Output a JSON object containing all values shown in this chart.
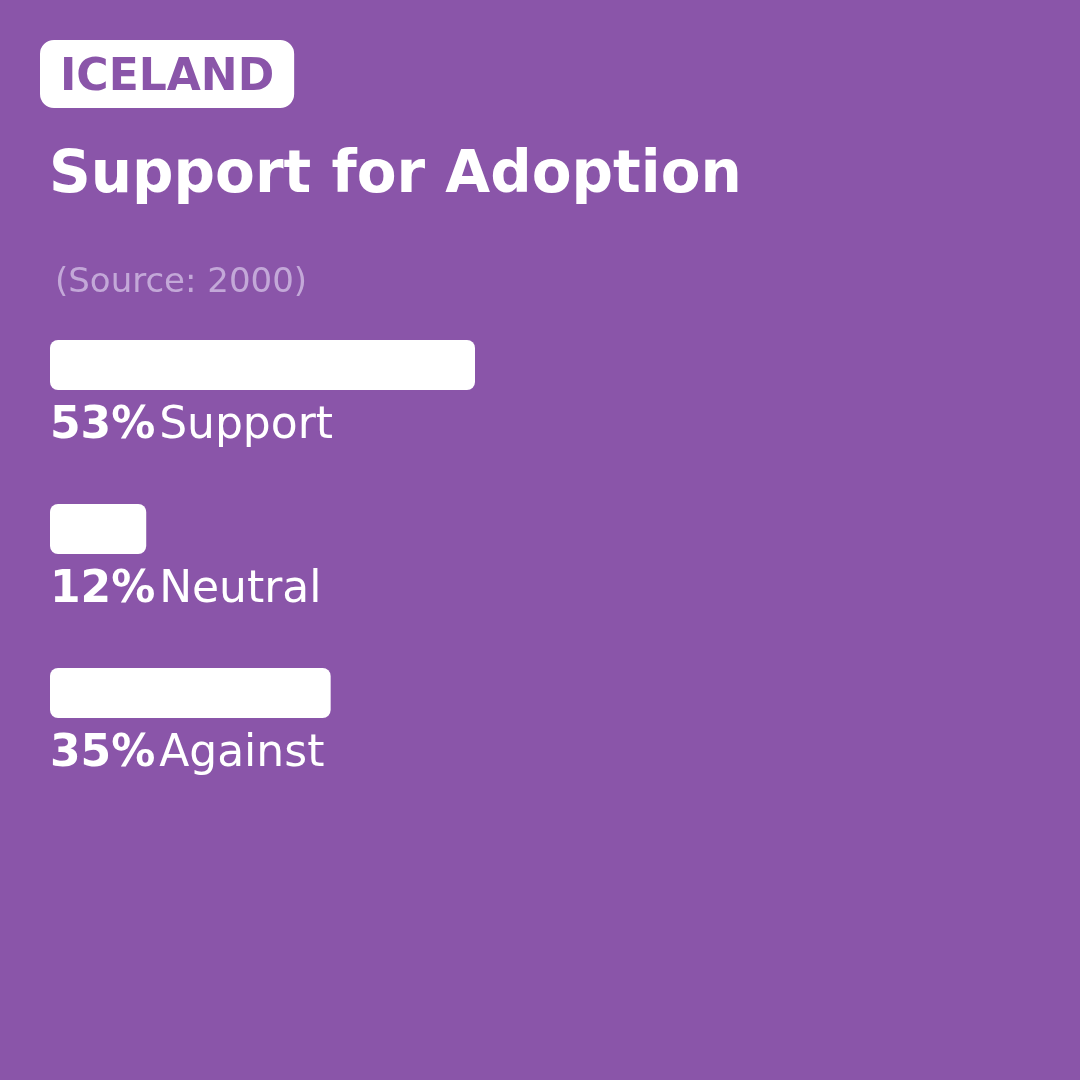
{
  "chart_data": {
    "type": "bar",
    "orientation": "horizontal",
    "subtitle": "ICELAND",
    "title": "Support for Adoption",
    "annotations": [
      "(Source: 2000)"
    ],
    "categories": [
      "Support",
      "Neutral",
      "Against"
    ],
    "values": [
      53,
      12,
      35
    ],
    "value_labels": [
      "53%",
      "12%",
      "35%"
    ],
    "color": "#ffffff"
  }
}
